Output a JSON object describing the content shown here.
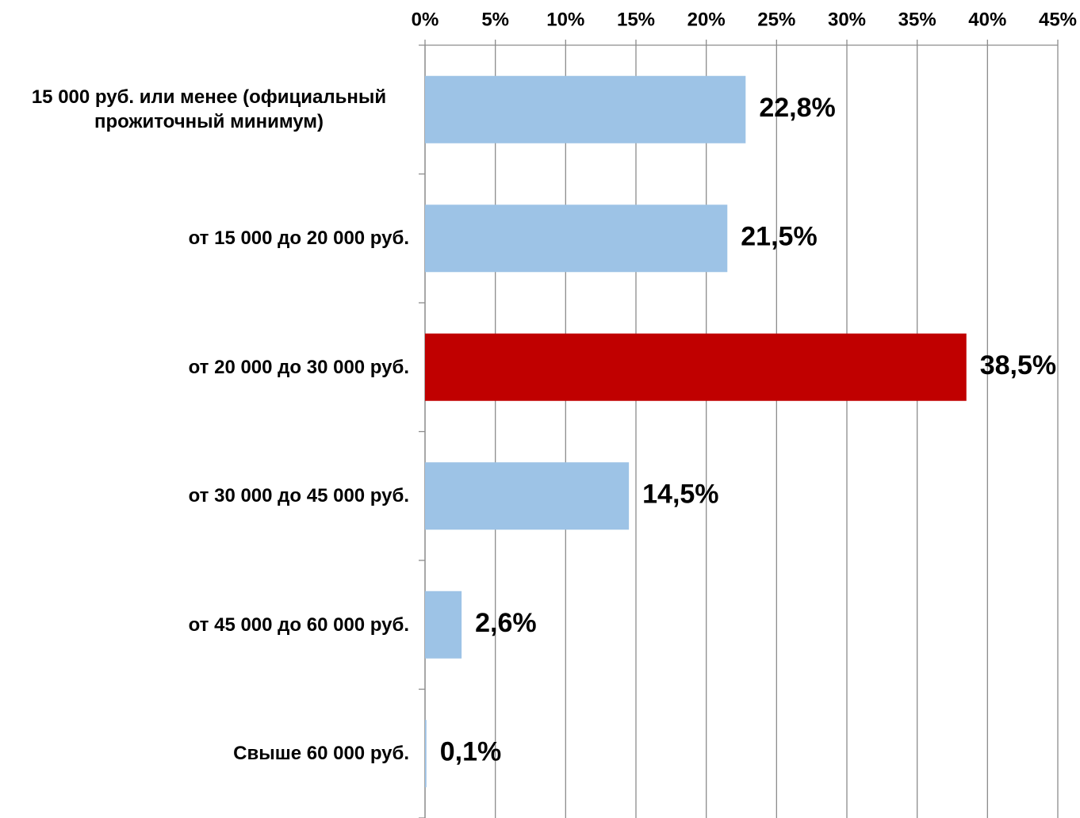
{
  "chart_data": {
    "type": "bar",
    "orientation": "horizontal",
    "categories": [
      "15 000 руб. или менее (официальный прожиточный минимум)",
      "от 15 000 до 20 000 руб.",
      "от 20 000 до 30 000 руб.",
      "от 30 000 до 45 000 руб.",
      "от 45 000 до 60 000 руб.",
      "Свыше 60 000 руб."
    ],
    "values": [
      22.8,
      21.5,
      38.5,
      14.5,
      2.6,
      0.1
    ],
    "value_labels": [
      "22,8%",
      "21,5%",
      "38,5%",
      "14,5%",
      "2,6%",
      "0,1%"
    ],
    "colors": [
      "#9dc3e6",
      "#9dc3e6",
      "#c00000",
      "#9dc3e6",
      "#9dc3e6",
      "#9dc3e6"
    ],
    "xlim": [
      0,
      45
    ],
    "xticks": [
      {
        "value": 0,
        "label": "0%"
      },
      {
        "value": 5,
        "label": "5%"
      },
      {
        "value": 10,
        "label": "10%"
      },
      {
        "value": 15,
        "label": "15%"
      },
      {
        "value": 20,
        "label": "20%"
      },
      {
        "value": 25,
        "label": "25%"
      },
      {
        "value": 30,
        "label": "30%"
      },
      {
        "value": 35,
        "label": "35%"
      },
      {
        "value": 40,
        "label": "40%"
      },
      {
        "value": 45,
        "label": "45%"
      }
    ],
    "grid": true
  }
}
